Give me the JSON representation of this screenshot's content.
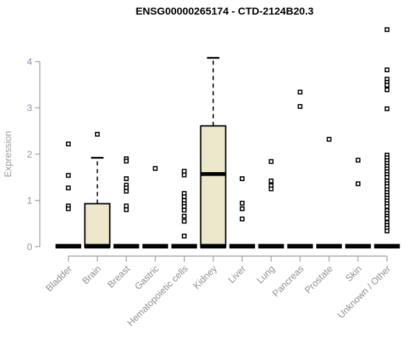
{
  "colors": {
    "box_fill": "#ede8cc",
    "box_border": "#000000",
    "point_stroke": "#000000",
    "point_fill": "#ffffff",
    "zero_bar": "#000000",
    "axis_line": "#a3a3a3",
    "tick_label": "#8d95a9",
    "category_label": "#8f8f8f",
    "title": "#000000",
    "background": "#ffffff"
  },
  "chart_data": {
    "type": "boxplot",
    "title": "ENSG00000265174 - CTD-2124B20.3",
    "ylabel": "Expression",
    "xlabel": "",
    "ylim": [
      0,
      4.8
    ],
    "yticks": [
      0,
      1,
      2,
      3,
      4
    ],
    "grid": false,
    "legend": null,
    "categories": [
      "Bladder",
      "Brain",
      "Breast",
      "Gastric",
      "Hematopoietic cells",
      "Kidney",
      "Liver",
      "Lung",
      "Pancreas",
      "Prostate",
      "Skin",
      "Unknown / Other"
    ],
    "series": [
      {
        "name": "Bladder",
        "box": {
          "q1": 0,
          "median": 0,
          "q3": 0,
          "whisker_low": 0,
          "whisker_high": 0
        },
        "points": [
          2.22,
          1.54,
          1.27,
          0.88,
          0.82
        ]
      },
      {
        "name": "Brain",
        "box": {
          "q1": 0,
          "median": 0,
          "q3": 0.93,
          "whisker_low": 0,
          "whisker_high": 1.92
        },
        "points": [
          2.43
        ]
      },
      {
        "name": "Breast",
        "box": {
          "q1": 0,
          "median": 0,
          "q3": 0,
          "whisker_low": 0,
          "whisker_high": 0
        },
        "points": [
          1.9,
          1.85,
          1.47,
          1.33,
          1.27,
          1.2,
          0.88,
          0.8
        ]
      },
      {
        "name": "Gastric",
        "box": {
          "q1": 0,
          "median": 0,
          "q3": 0,
          "whisker_low": 0,
          "whisker_high": 0
        },
        "points": [
          1.69
        ]
      },
      {
        "name": "Hematopoietic cells",
        "box": {
          "q1": 0,
          "median": 0,
          "q3": 0,
          "whisker_low": 0,
          "whisker_high": 0
        },
        "points": [
          1.63,
          1.55,
          1.15,
          1.08,
          1.0,
          0.93,
          0.87,
          0.79,
          0.66,
          0.55,
          0.23
        ]
      },
      {
        "name": "Kidney",
        "box": {
          "q1": 0,
          "median": 1.57,
          "q3": 2.61,
          "whisker_low": 0,
          "whisker_high": 4.08
        },
        "points": []
      },
      {
        "name": "Liver",
        "box": {
          "q1": 0,
          "median": 0,
          "q3": 0,
          "whisker_low": 0,
          "whisker_high": 0
        },
        "points": [
          1.47,
          0.94,
          0.82,
          0.6
        ]
      },
      {
        "name": "Lung",
        "box": {
          "q1": 0,
          "median": 0,
          "q3": 0,
          "whisker_low": 0,
          "whisker_high": 0
        },
        "points": [
          1.84,
          1.42,
          1.32,
          1.25
        ]
      },
      {
        "name": "Pancreas",
        "box": {
          "q1": 0,
          "median": 0,
          "q3": 0,
          "whisker_low": 0,
          "whisker_high": 0
        },
        "points": [
          3.34,
          3.03
        ]
      },
      {
        "name": "Prostate",
        "box": {
          "q1": 0,
          "median": 0,
          "q3": 0,
          "whisker_low": 0,
          "whisker_high": 0
        },
        "points": [
          2.32
        ]
      },
      {
        "name": "Skin",
        "box": {
          "q1": 0,
          "median": 0,
          "q3": 0,
          "whisker_low": 0,
          "whisker_high": 0
        },
        "points": [
          1.87,
          1.36
        ]
      },
      {
        "name": "Unknown / Other",
        "box": {
          "q1": 0,
          "median": 0,
          "q3": 0,
          "whisker_low": 0,
          "whisker_high": 0
        },
        "points": [
          4.69,
          3.82,
          3.62,
          3.55,
          3.49,
          3.39,
          2.98,
          1.98,
          1.92,
          1.86,
          1.8,
          1.74,
          1.68,
          1.62,
          1.56,
          1.5,
          1.42,
          1.36,
          1.3,
          1.23,
          1.17,
          1.11,
          1.05,
          0.99,
          0.93,
          0.87,
          0.78,
          0.72,
          0.66,
          0.61,
          0.52,
          0.46,
          0.4,
          0.34
        ]
      }
    ]
  }
}
